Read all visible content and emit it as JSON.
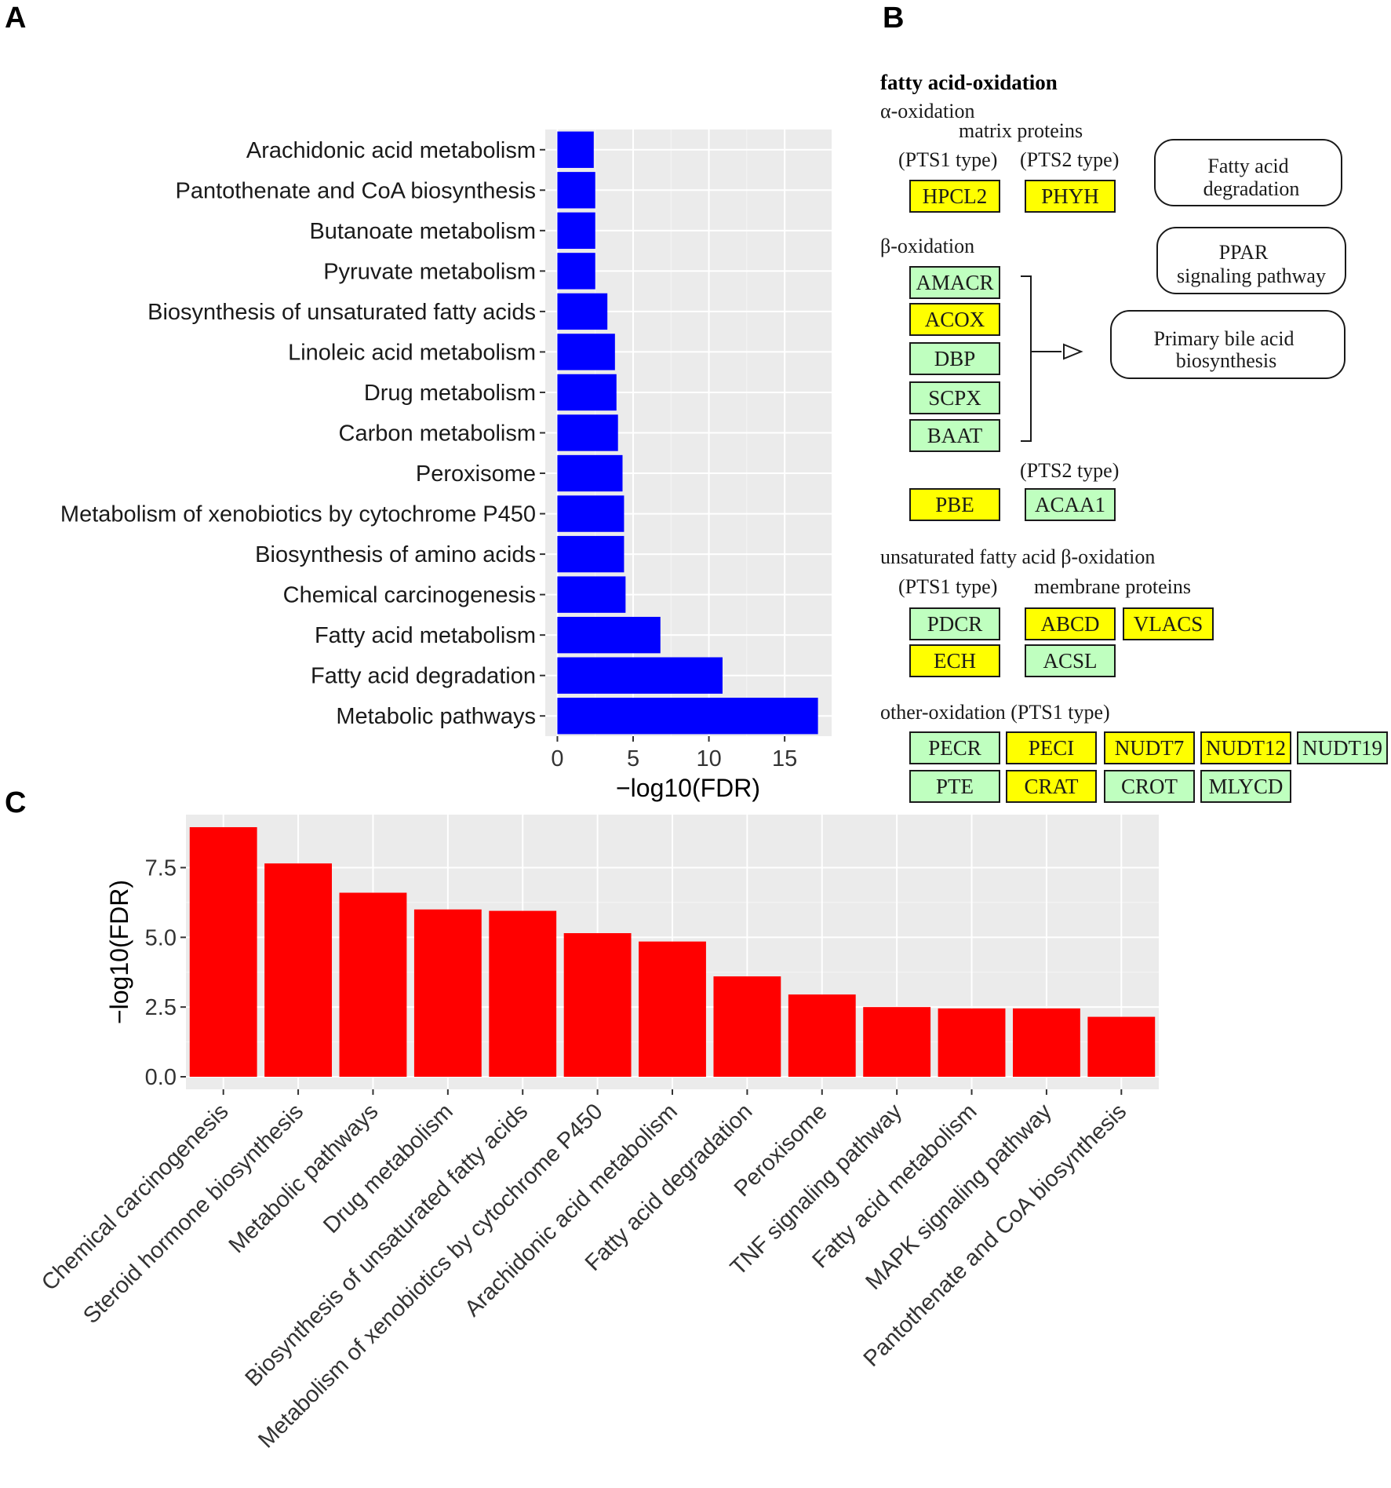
{
  "panel_labels": {
    "a": "A",
    "b": "B",
    "c": "C"
  },
  "colors": {
    "panel_a_bar": "#0000ff",
    "panel_c_bar": "#ff0000",
    "panel_bg": "#ebebeb",
    "gene_yellow": "#ffff00",
    "gene_green": "#bfffbf"
  },
  "chart_data": [
    {
      "id": "A",
      "type": "bar",
      "orientation": "horizontal",
      "categories": [
        "Arachidonic acid metabolism",
        "Pantothenate and CoA biosynthesis",
        "Butanoate metabolism",
        "Pyruvate metabolism",
        "Biosynthesis of unsaturated fatty acids",
        "Linoleic acid metabolism",
        "Drug metabolism",
        "Carbon metabolism",
        "Peroxisome",
        "Metabolism of xenobiotics by cytochrome P450",
        "Biosynthesis of amino acids",
        "Chemical carcinogenesis",
        "Fatty acid metabolism",
        "Fatty acid degradation",
        "Metabolic pathways"
      ],
      "values": [
        2.4,
        2.5,
        2.5,
        2.5,
        3.3,
        3.8,
        3.9,
        4.0,
        4.3,
        4.4,
        4.4,
        4.5,
        6.8,
        10.9,
        17.2
      ],
      "xlabel": "−log10(FDR)",
      "ylabel": "",
      "xlim": [
        -0.8,
        18.1
      ],
      "xticks": [
        0,
        5,
        10,
        15
      ],
      "xtick_labels": [
        "0",
        "5",
        "10",
        "15"
      ],
      "grid": true
    },
    {
      "id": "C",
      "type": "bar",
      "orientation": "vertical",
      "categories": [
        "Chemical carcinogenesis",
        "Steroid hormone biosynthesis",
        "Metabolic pathways",
        "Drug metabolism",
        "Biosynthesis of unsaturated fatty acids",
        "Metabolism of xenobiotics by cytochrome P450",
        "Arachidonic acid metabolism",
        "Fatty acid degradation",
        "Peroxisome",
        "TNF signaling pathway",
        "Fatty acid metabolism",
        "MAPK signaling pathway",
        "Pantothenate and CoA biosynthesis"
      ],
      "values": [
        8.95,
        7.65,
        6.6,
        6.0,
        5.95,
        5.15,
        4.85,
        3.6,
        2.95,
        2.5,
        2.45,
        2.45,
        2.15
      ],
      "xlabel": "",
      "ylabel": "−log10(FDR)",
      "ylim": [
        -0.45,
        9.4
      ],
      "yticks": [
        0,
        2.5,
        5,
        7.5
      ],
      "ytick_labels": [
        "0.0",
        "2.5",
        "5.0",
        "7.5"
      ],
      "grid": true
    }
  ],
  "kegg": {
    "title": "fatty acid-oxidation",
    "alpha_oxidation": "α-oxidation",
    "matrix_proteins": "matrix proteins",
    "pts1_type_1": "(PTS1 type)",
    "pts2_type_1": "(PTS2 type)",
    "beta_oxidation": "β-oxidation",
    "pts2_type_2": "(PTS2 type)",
    "unsat_beta": "unsaturated fatty acid β-oxidation",
    "pts1_type_2": "(PTS1 type)",
    "membrane_proteins": "membrane proteins",
    "other_oxidation": "other-oxidation (PTS1 type)",
    "pathway_fatty_acid_deg_1": "Fatty acid",
    "pathway_fatty_acid_deg_2": "degradation",
    "pathway_ppar_1": "PPAR",
    "pathway_ppar_2": "signaling pathway",
    "pathway_bile_1": "Primary bile acid",
    "pathway_bile_2": "biosynthesis",
    "genes": [
      {
        "label": "HPCL2",
        "color": "yellow"
      },
      {
        "label": "PHYH",
        "color": "yellow"
      },
      {
        "label": "AMACR",
        "color": "green"
      },
      {
        "label": "ACOX",
        "color": "yellow"
      },
      {
        "label": "DBP",
        "color": "green"
      },
      {
        "label": "SCPX",
        "color": "green"
      },
      {
        "label": "BAAT",
        "color": "green"
      },
      {
        "label": "PBE",
        "color": "yellow"
      },
      {
        "label": "ACAA1",
        "color": "green"
      },
      {
        "label": "PDCR",
        "color": "green"
      },
      {
        "label": "ABCD",
        "color": "yellow"
      },
      {
        "label": "VLACS",
        "color": "yellow"
      },
      {
        "label": "ECH",
        "color": "yellow"
      },
      {
        "label": "ACSL",
        "color": "green"
      },
      {
        "label": "PECR",
        "color": "green"
      },
      {
        "label": "PECI",
        "color": "yellow"
      },
      {
        "label": "NUDT7",
        "color": "yellow"
      },
      {
        "label": "NUDT12",
        "color": "yellow"
      },
      {
        "label": "NUDT19",
        "color": "green"
      },
      {
        "label": "PTE",
        "color": "green"
      },
      {
        "label": "CRAT",
        "color": "yellow"
      },
      {
        "label": "CROT",
        "color": "green"
      },
      {
        "label": "MLYCD",
        "color": "green"
      }
    ]
  }
}
